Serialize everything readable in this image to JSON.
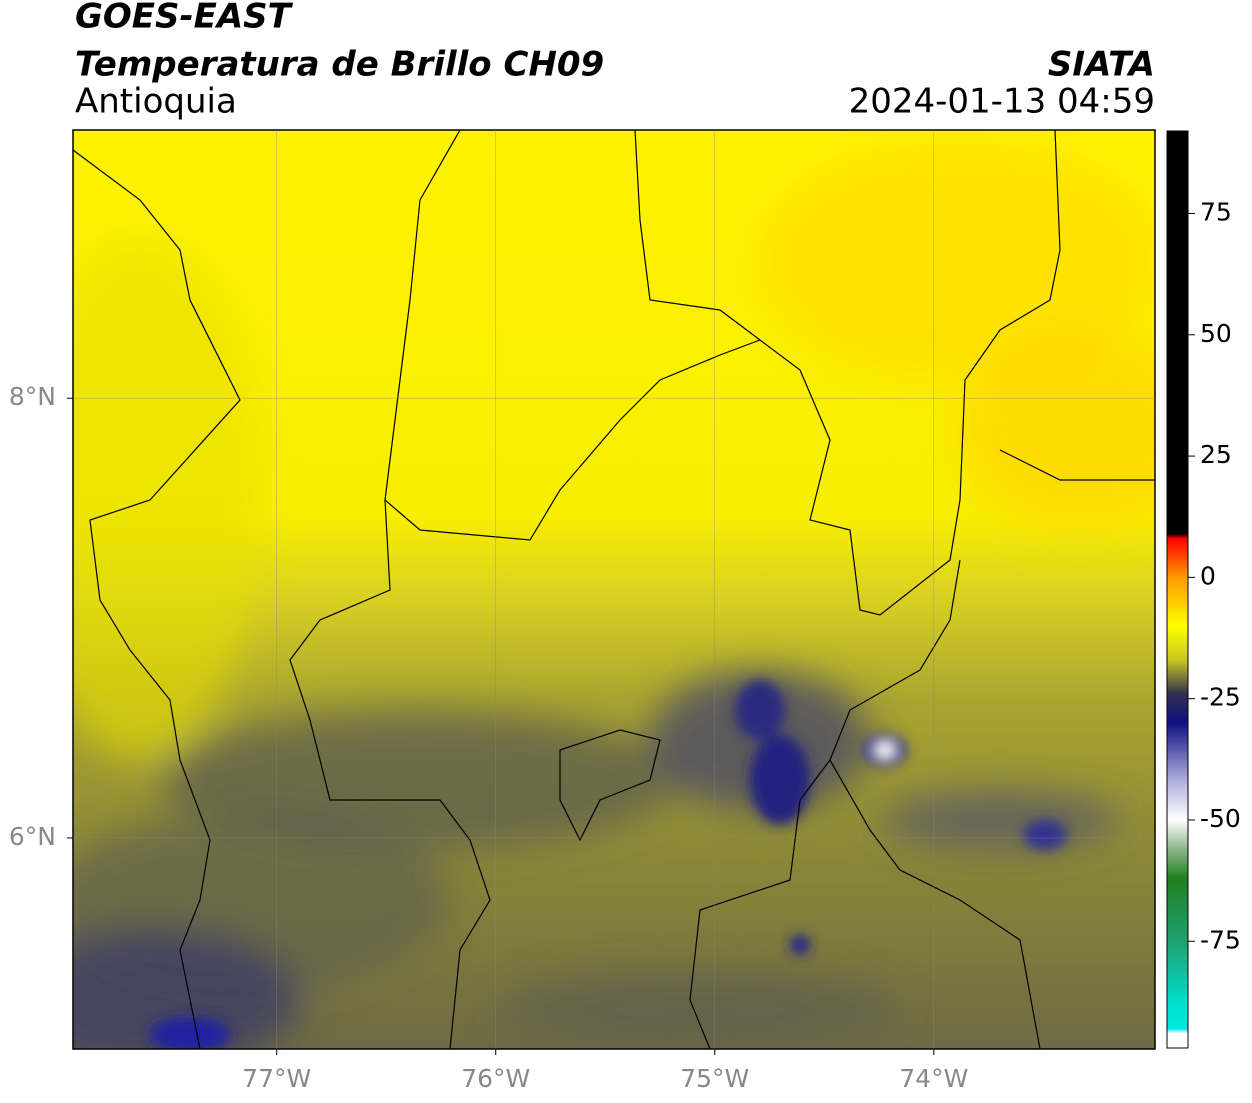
{
  "header": {
    "title": "GOES-EAST",
    "subtitle": "Temperatura de Brillo CH09",
    "region": "Antioquia",
    "source": "SIATA",
    "datetime": "2024-01-13 04:59"
  },
  "map": {
    "xlim": [
      -77.93,
      -72.99
    ],
    "ylim": [
      5.04,
      9.22
    ],
    "xticks": [
      {
        "value": -77,
        "label": "77°W"
      },
      {
        "value": -76,
        "label": "76°W"
      },
      {
        "value": -75,
        "label": "75°W"
      },
      {
        "value": -74,
        "label": "74°W"
      }
    ],
    "yticks": [
      {
        "value": 6,
        "label": "6°N"
      },
      {
        "value": 8,
        "label": "8°N"
      }
    ],
    "grid": true
  },
  "colorbar": {
    "lim": [
      -97,
      92
    ],
    "ticks": [
      75,
      50,
      25,
      0,
      -25,
      -50,
      -75
    ],
    "stops": [
      [
        92,
        "#000000"
      ],
      [
        9,
        "#000000"
      ],
      [
        8,
        "#ff0000"
      ],
      [
        0,
        "#ff9900"
      ],
      [
        -10,
        "#ffff00"
      ],
      [
        -17,
        "#c8c820"
      ],
      [
        -24,
        "#303050"
      ],
      [
        -30,
        "#101080"
      ],
      [
        -42,
        "#b0b0e0"
      ],
      [
        -50,
        "#ffffff"
      ],
      [
        -55,
        "#a0c0a0"
      ],
      [
        -62,
        "#208020"
      ],
      [
        -75,
        "#20a070"
      ],
      [
        -88,
        "#00e0d0"
      ],
      [
        -93,
        "#00e8e0"
      ],
      [
        -94,
        "#ffffff"
      ],
      [
        -97,
        "#ffffff"
      ]
    ]
  }
}
